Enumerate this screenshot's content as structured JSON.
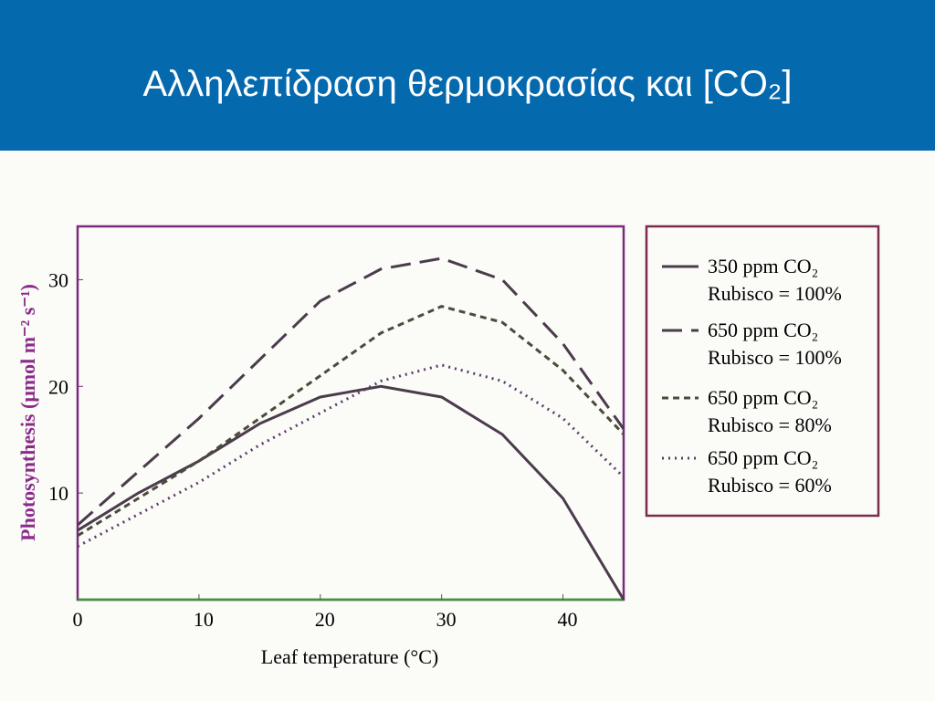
{
  "slide_title": "Αλληλεπίδραση θερμοκρασίας και [CO₂]",
  "chart_data": {
    "type": "line",
    "x_label": "Leaf temperature (°C)",
    "y_label": "Photosynthesis (μmol m⁻² s⁻¹)",
    "x": [
      0,
      5,
      10,
      15,
      20,
      25,
      30,
      35,
      40,
      45
    ],
    "xlim": [
      0,
      45
    ],
    "xticks": [
      0,
      10,
      20,
      30,
      40
    ],
    "ylim": [
      0,
      35
    ],
    "yticks": [
      10,
      20,
      30
    ],
    "series": [
      {
        "name": "350 ppm CO₂\nRubisco = 100%",
        "color": "#4b3b4b",
        "style": "solid",
        "values": [
          6.5,
          10,
          13,
          16.5,
          19,
          20,
          19,
          15.5,
          9.5,
          0
        ]
      },
      {
        "name": "650 ppm CO₂\nRubisco = 100%",
        "color": "#4b3b4b",
        "style": "long-dash",
        "values": [
          7,
          12,
          17,
          22.5,
          28,
          31,
          32,
          30,
          24,
          16
        ]
      },
      {
        "name": "650 ppm CO₂\nRubisco = 80%",
        "color": "#4b4b3b",
        "style": "short-dash",
        "values": [
          6,
          9.5,
          13,
          17,
          21,
          25,
          27.5,
          26,
          21.5,
          15.5
        ]
      },
      {
        "name": "650 ppm CO₂\nRubisco = 60%",
        "color": "#5a3b6a",
        "style": "dotted",
        "values": [
          5,
          8,
          11,
          14.5,
          17.5,
          20.5,
          22,
          20.5,
          17,
          11.5
        ]
      }
    ]
  }
}
